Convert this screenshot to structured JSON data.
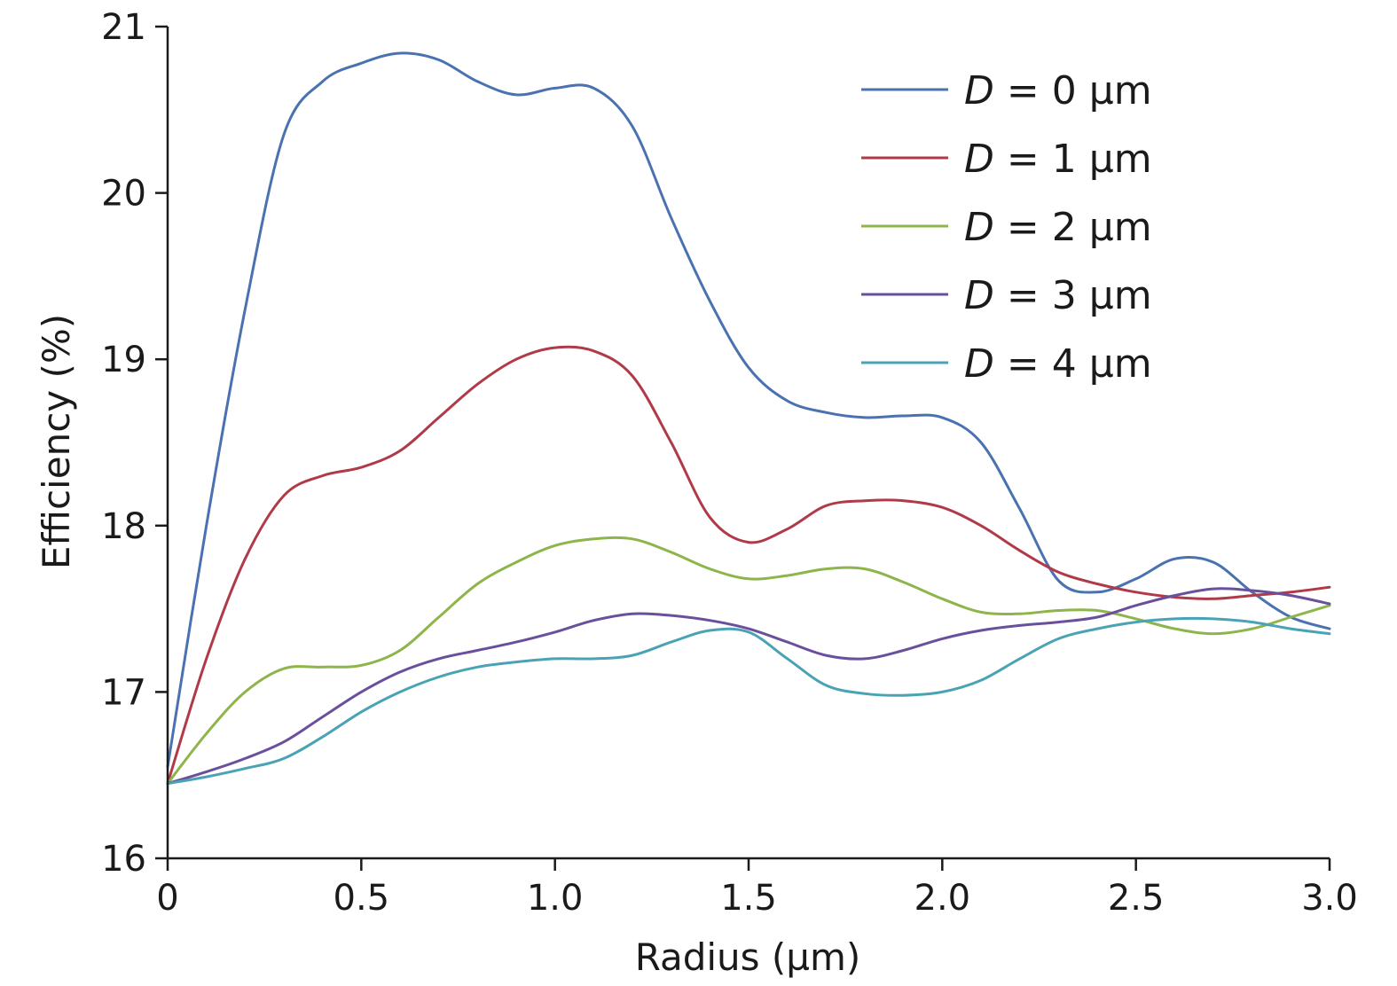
{
  "chart_data": {
    "type": "line",
    "title": "",
    "xlabel": "Radius (µm)",
    "ylabel": "Efficiency (%)",
    "xlim": [
      0,
      3.0
    ],
    "ylim": [
      16,
      21
    ],
    "xticks": [
      0,
      0.5,
      1.0,
      1.5,
      2.0,
      2.5,
      3.0
    ],
    "xtick_labels": [
      "0",
      "0.5",
      "1.0",
      "1.5",
      "2.0",
      "2.5",
      "3.0"
    ],
    "yticks": [
      16,
      17,
      18,
      19,
      20,
      21
    ],
    "ytick_labels": [
      "16",
      "17",
      "18",
      "19",
      "20",
      "21"
    ],
    "grid": false,
    "legend_position": "top-right",
    "series": [
      {
        "name": "D = 0 µm",
        "name_italic": "D",
        "name_rest": " = 0 µm",
        "color": "#4a72b0",
        "x": [
          0,
          0.1,
          0.2,
          0.3,
          0.4,
          0.5,
          0.6,
          0.7,
          0.8,
          0.9,
          1.0,
          1.1,
          1.2,
          1.3,
          1.4,
          1.5,
          1.6,
          1.7,
          1.8,
          1.9,
          2.0,
          2.1,
          2.2,
          2.3,
          2.4,
          2.5,
          2.6,
          2.7,
          2.8,
          2.9,
          3.0
        ],
        "y": [
          16.55,
          18.0,
          19.3,
          20.35,
          20.67,
          20.78,
          20.84,
          20.8,
          20.67,
          20.59,
          20.63,
          20.63,
          20.4,
          19.85,
          19.35,
          18.95,
          18.75,
          18.68,
          18.65,
          18.66,
          18.65,
          18.5,
          18.1,
          17.67,
          17.6,
          17.68,
          17.8,
          17.78,
          17.6,
          17.45,
          17.38
        ]
      },
      {
        "name": "D = 1 µm",
        "name_italic": "D",
        "name_rest": " = 1 µm",
        "color": "#b03a48",
        "x": [
          0,
          0.1,
          0.2,
          0.3,
          0.4,
          0.5,
          0.6,
          0.7,
          0.8,
          0.9,
          1.0,
          1.1,
          1.2,
          1.3,
          1.4,
          1.5,
          1.6,
          1.7,
          1.8,
          1.9,
          2.0,
          2.1,
          2.2,
          2.3,
          2.4,
          2.5,
          2.6,
          2.7,
          2.8,
          2.9,
          3.0
        ],
        "y": [
          16.45,
          17.2,
          17.8,
          18.18,
          18.3,
          18.35,
          18.45,
          18.65,
          18.85,
          19.0,
          19.07,
          19.05,
          18.9,
          18.5,
          18.05,
          17.9,
          17.98,
          18.12,
          18.15,
          18.15,
          18.11,
          18.0,
          17.85,
          17.72,
          17.65,
          17.6,
          17.57,
          17.56,
          17.58,
          17.6,
          17.63
        ]
      },
      {
        "name": "D = 2 µm",
        "name_italic": "D",
        "name_rest": " = 2 µm",
        "color": "#8db54a",
        "x": [
          0,
          0.1,
          0.2,
          0.3,
          0.4,
          0.5,
          0.6,
          0.7,
          0.8,
          0.9,
          1.0,
          1.1,
          1.2,
          1.3,
          1.4,
          1.5,
          1.6,
          1.7,
          1.8,
          1.9,
          2.0,
          2.1,
          2.2,
          2.3,
          2.4,
          2.5,
          2.6,
          2.7,
          2.8,
          2.9,
          3.0
        ],
        "y": [
          16.45,
          16.75,
          17.0,
          17.14,
          17.15,
          17.16,
          17.25,
          17.45,
          17.65,
          17.78,
          17.88,
          17.92,
          17.92,
          17.84,
          17.74,
          17.68,
          17.7,
          17.74,
          17.74,
          17.66,
          17.56,
          17.48,
          17.47,
          17.49,
          17.49,
          17.44,
          17.38,
          17.35,
          17.38,
          17.45,
          17.52
        ]
      },
      {
        "name": "D = 3 µm",
        "name_italic": "D",
        "name_rest": " = 3 µm",
        "color": "#6a4f9c",
        "x": [
          0,
          0.1,
          0.2,
          0.3,
          0.4,
          0.5,
          0.6,
          0.7,
          0.8,
          0.9,
          1.0,
          1.1,
          1.2,
          1.3,
          1.4,
          1.5,
          1.6,
          1.7,
          1.8,
          1.9,
          2.0,
          2.1,
          2.2,
          2.3,
          2.4,
          2.5,
          2.6,
          2.7,
          2.8,
          2.9,
          3.0
        ],
        "y": [
          16.45,
          16.52,
          16.6,
          16.7,
          16.85,
          17.0,
          17.12,
          17.2,
          17.25,
          17.3,
          17.36,
          17.43,
          17.47,
          17.46,
          17.43,
          17.38,
          17.3,
          17.22,
          17.2,
          17.25,
          17.32,
          17.37,
          17.4,
          17.42,
          17.45,
          17.52,
          17.58,
          17.62,
          17.61,
          17.58,
          17.53
        ]
      },
      {
        "name": "D = 4 µm",
        "name_italic": "D",
        "name_rest": " = 4 µm",
        "color": "#4aa3b5",
        "x": [
          0,
          0.1,
          0.2,
          0.3,
          0.4,
          0.5,
          0.6,
          0.7,
          0.8,
          0.9,
          1.0,
          1.1,
          1.2,
          1.3,
          1.4,
          1.5,
          1.6,
          1.7,
          1.8,
          1.9,
          2.0,
          2.1,
          2.2,
          2.3,
          2.4,
          2.5,
          2.6,
          2.7,
          2.8,
          2.9,
          3.0
        ],
        "y": [
          16.45,
          16.49,
          16.54,
          16.6,
          16.73,
          16.88,
          17.0,
          17.09,
          17.15,
          17.18,
          17.2,
          17.2,
          17.22,
          17.3,
          17.37,
          17.36,
          17.2,
          17.04,
          16.99,
          16.98,
          17.0,
          17.07,
          17.2,
          17.32,
          17.38,
          17.42,
          17.44,
          17.44,
          17.42,
          17.38,
          17.35
        ]
      }
    ]
  }
}
